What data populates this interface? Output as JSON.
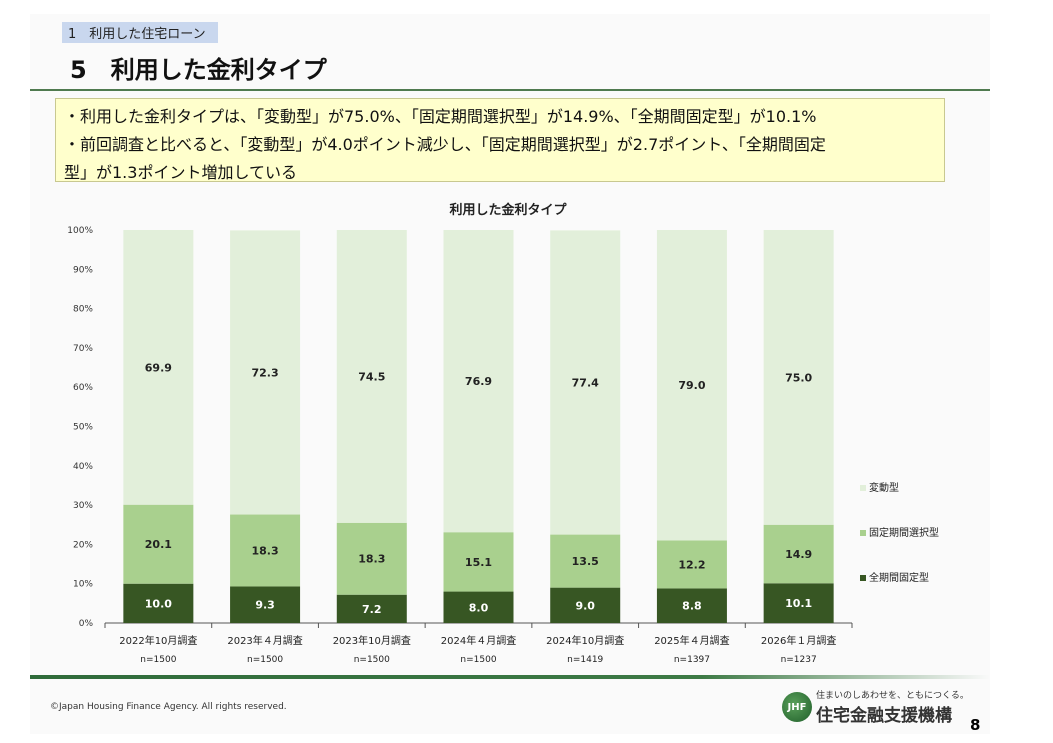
{
  "header": {
    "section": "1　利用した住宅ローン",
    "title": "5　利用した金利タイプ"
  },
  "summary": {
    "lines": [
      "・利用した金利タイプは、「変動型」が75.0%、「固定期間選択型」が14.9%、「全期間固定型」が10.1%",
      "・前回調査と比べると、「変動型」が4.0ポイント減少し、「固定期間選択型」が2.7ポイント、「全期間固定",
      "型」が1.3ポイント増加している"
    ]
  },
  "chart_data": {
    "type": "bar",
    "stacked": true,
    "title": "利用した金利タイプ",
    "categories": [
      "2022年10月調査",
      "2023年４月調査",
      "2023年10月調査",
      "2024年４月調査",
      "2024年10月調査",
      "2025年４月調査",
      "2026年１月調査"
    ],
    "sample_sizes": [
      "n=1500",
      "n=1500",
      "n=1500",
      "n=1500",
      "n=1419",
      "n=1397",
      "n=1237"
    ],
    "series": [
      {
        "name": "全期間固定型",
        "color": "#375623",
        "values": [
          10.0,
          9.3,
          7.2,
          8.0,
          9.0,
          8.8,
          10.1
        ]
      },
      {
        "name": "固定期間選択型",
        "color": "#a9d08e",
        "values": [
          20.1,
          18.3,
          18.3,
          15.1,
          13.5,
          12.2,
          14.9
        ]
      },
      {
        "name": "変動型",
        "color": "#e2efda",
        "values": [
          69.9,
          72.3,
          74.5,
          76.9,
          77.4,
          79.0,
          75.0
        ]
      }
    ],
    "ylim": [
      0,
      100
    ],
    "yticks": [
      "0%",
      "10%",
      "20%",
      "30%",
      "40%",
      "50%",
      "60%",
      "70%",
      "80%",
      "90%",
      "100%"
    ],
    "legend": "right",
    "grid": false
  },
  "footer": {
    "copyright": "©Japan Housing Finance Agency. All rights reserved.",
    "tagline": "住まいのしあわせを、ともにつくる。",
    "org": "住宅金融支援機構",
    "logo_text": "JHF",
    "page": "8"
  }
}
